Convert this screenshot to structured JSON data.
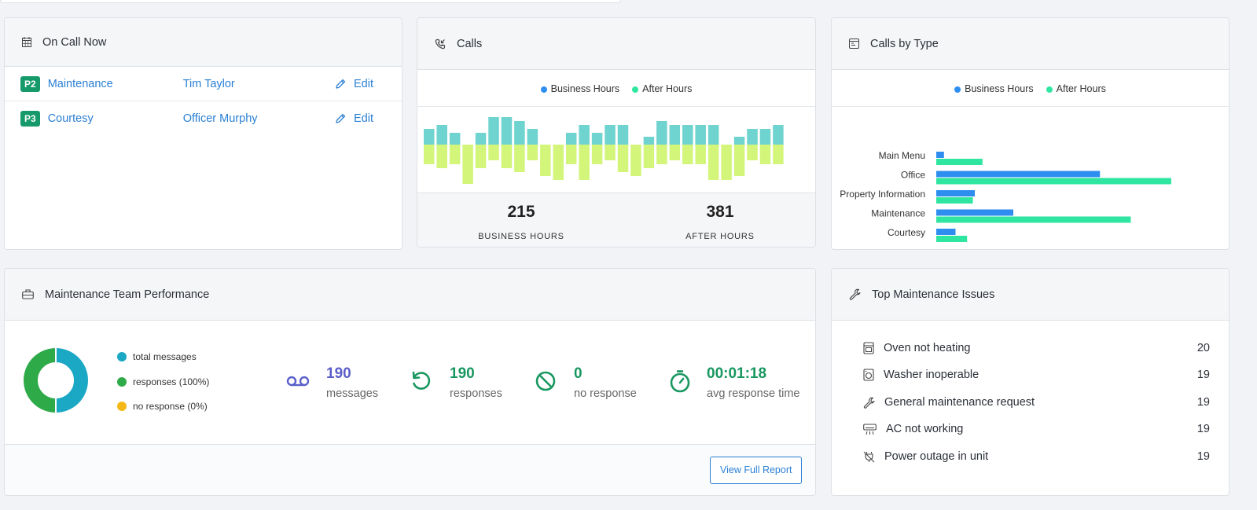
{
  "on_call": {
    "title": "On Call Now",
    "rows": [
      {
        "priority": "P2",
        "type": "Maintenance",
        "person": "Tim Taylor",
        "action": "Edit"
      },
      {
        "priority": "P3",
        "type": "Courtesy",
        "person": "Officer Murphy",
        "action": "Edit"
      }
    ]
  },
  "calls": {
    "title": "Calls",
    "legend": [
      "Business Hours",
      "After Hours"
    ],
    "business_total": "215",
    "business_label": "BUSINESS HOURS",
    "after_total": "381",
    "after_label": "AFTER HOURS",
    "colors": {
      "business": "#6fd3cf",
      "after": "#d3f57a"
    }
  },
  "calls_by_type": {
    "title": "Calls by Type",
    "legend": [
      "Business Hours",
      "After Hours"
    ],
    "colors": {
      "business": "#2d8ef0",
      "after": "#2fe6a0"
    }
  },
  "chart_data": [
    {
      "type": "bar",
      "title": "Calls",
      "series": [
        {
          "name": "Business Hours",
          "values": [
            4,
            5,
            3,
            0,
            3,
            7,
            7,
            6,
            4,
            0,
            0,
            3,
            5,
            3,
            5,
            5,
            0,
            2,
            6,
            5,
            5,
            5,
            5,
            0,
            2,
            4,
            4,
            5
          ]
        },
        {
          "name": "After Hours",
          "values": [
            5,
            6,
            5,
            10,
            6,
            4,
            6,
            7,
            4,
            8,
            9,
            5,
            9,
            5,
            4,
            7,
            8,
            6,
            5,
            4,
            5,
            5,
            9,
            9,
            8,
            4,
            5,
            5
          ]
        }
      ]
    },
    {
      "type": "bar",
      "title": "Calls by Type",
      "orientation": "horizontal",
      "categories": [
        "Main Menu",
        "Office",
        "Property Information",
        "Maintenance",
        "Courtesy"
      ],
      "series": [
        {
          "name": "Business Hours",
          "values": [
            4,
            85,
            20,
            40,
            10
          ]
        },
        {
          "name": "After Hours",
          "values": [
            24,
            122,
            19,
            101,
            16
          ]
        }
      ]
    },
    {
      "type": "pie",
      "title": "Maintenance Team Performance",
      "categories": [
        "total messages",
        "responses (100%)",
        "no response (0%)"
      ],
      "values": [
        190,
        190,
        0
      ]
    }
  ],
  "performance": {
    "title": "Maintenance Team Performance",
    "legend": [
      {
        "label": "total messages",
        "color": "#1ba8c4"
      },
      {
        "label": "responses (100%)",
        "color": "#2eaa48"
      },
      {
        "label": "no response (0%)",
        "color": "#f4b917"
      }
    ],
    "metrics": [
      {
        "value": "190",
        "label": "messages",
        "color": "#5a5fc8"
      },
      {
        "value": "190",
        "label": "responses",
        "color": "#189760"
      },
      {
        "value": "0",
        "label": "no response",
        "color": "#189760"
      },
      {
        "value": "00:01:18",
        "label": "avg response time",
        "color": "#189760"
      }
    ],
    "button": "View Full Report"
  },
  "issues": {
    "title": "Top Maintenance Issues",
    "rows": [
      {
        "label": "Oven not heating",
        "count": "20",
        "icon": "oven-icon"
      },
      {
        "label": "Washer inoperable",
        "count": "19",
        "icon": "washer-icon"
      },
      {
        "label": "General maintenance request",
        "count": "19",
        "icon": "wrench-icon"
      },
      {
        "label": "AC not working",
        "count": "19",
        "icon": "ac-icon"
      },
      {
        "label": "Power outage in unit",
        "count": "19",
        "icon": "power-off-icon"
      }
    ]
  }
}
